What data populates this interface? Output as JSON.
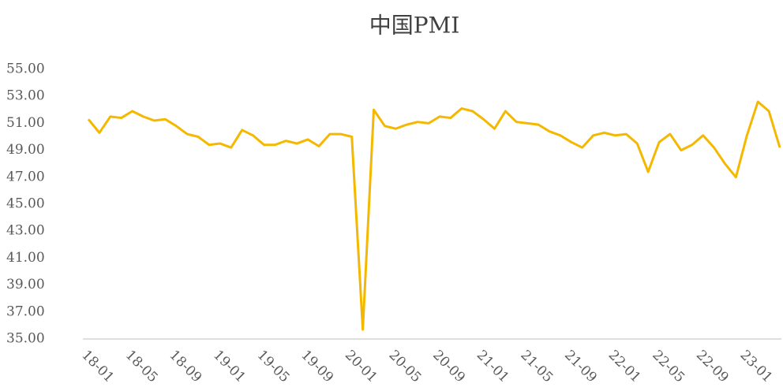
{
  "chart_data": {
    "type": "line",
    "title": "中国PMI",
    "categories": [
      "18-01",
      null,
      null,
      null,
      "18-05",
      null,
      null,
      null,
      "18-09",
      null,
      null,
      null,
      "19-01",
      null,
      null,
      null,
      "19-05",
      null,
      null,
      null,
      "19-09",
      null,
      null,
      null,
      "20-01",
      null,
      null,
      null,
      "20-05",
      null,
      null,
      null,
      "20-09",
      null,
      null,
      null,
      "21-01",
      null,
      null,
      null,
      "21-05",
      null,
      null,
      null,
      "21-09",
      null,
      null,
      null,
      "22-01",
      null,
      null,
      null,
      "22-05",
      null,
      null,
      null,
      "22-09",
      null,
      null,
      null,
      "23-01",
      null,
      null,
      null
    ],
    "series": [
      {
        "name": "PMI",
        "color": "#f5b800",
        "values": [
          51.3,
          50.3,
          51.5,
          51.4,
          51.9,
          51.5,
          51.2,
          51.3,
          50.8,
          50.2,
          50.0,
          49.4,
          49.5,
          49.2,
          50.5,
          50.1,
          49.4,
          49.4,
          49.7,
          49.5,
          49.8,
          49.3,
          50.2,
          50.2,
          50.0,
          35.7,
          52.0,
          50.8,
          50.6,
          50.9,
          51.1,
          51.0,
          51.5,
          51.4,
          52.1,
          51.9,
          51.3,
          50.6,
          51.9,
          51.1,
          51.0,
          50.9,
          50.4,
          50.1,
          49.6,
          49.2,
          50.1,
          50.3,
          50.1,
          50.2,
          49.5,
          47.4,
          49.6,
          50.2,
          49.0,
          49.4,
          50.1,
          49.2,
          48.0,
          47.0,
          50.1,
          52.6,
          51.9,
          49.2
        ]
      }
    ],
    "ylim": [
      35,
      55
    ],
    "yticks": [
      {
        "value": 35,
        "label": "35.00"
      },
      {
        "value": 37,
        "label": "37.00"
      },
      {
        "value": 39,
        "label": "39.00"
      },
      {
        "value": 41,
        "label": "41.00"
      },
      {
        "value": 43,
        "label": "43.00"
      },
      {
        "value": 45,
        "label": "45.00"
      },
      {
        "value": 47,
        "label": "47.00"
      },
      {
        "value": 49,
        "label": "49.00"
      },
      {
        "value": 51,
        "label": "51.00"
      },
      {
        "value": 53,
        "label": "53.00"
      },
      {
        "value": 55,
        "label": "55.00"
      }
    ],
    "grid": false
  }
}
